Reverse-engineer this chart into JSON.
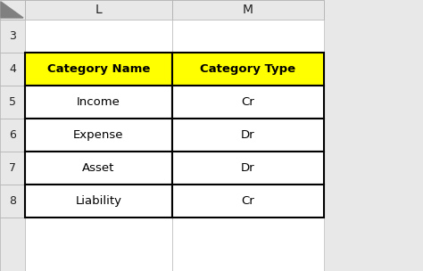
{
  "col_headers": [
    "Category Name",
    "Category Type"
  ],
  "rows": [
    [
      "Income",
      "Cr"
    ],
    [
      "Expense",
      "Dr"
    ],
    [
      "Asset",
      "Dr"
    ],
    [
      "Liability",
      "Cr"
    ]
  ],
  "col_labels": [
    "L",
    "M"
  ],
  "row_labels": [
    "3",
    "4",
    "5",
    "6",
    "7",
    "8"
  ],
  "header_bg": "#FFFF00",
  "header_text_color": "#000000",
  "cell_bg": "#FFFFFF",
  "cell_border_color": "#000000",
  "grid_color": "#B0B0B0",
  "spreadsheet_bg": "#FFFFFF",
  "outer_bg": "#E8E8E8",
  "header_fontsize": 9.5,
  "cell_fontsize": 9.5,
  "col_label_fontsize": 10,
  "row_label_fontsize": 9
}
